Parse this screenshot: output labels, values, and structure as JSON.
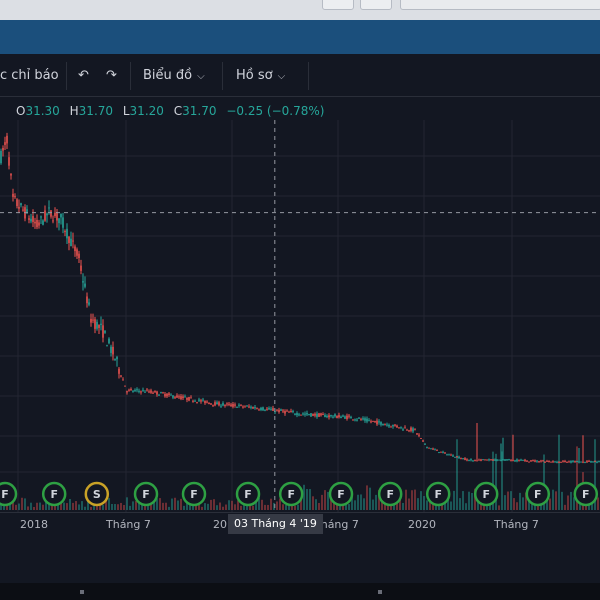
{
  "toolbar": {
    "indicators_label": "c chỉ báo",
    "undo_icon": "undo-icon",
    "redo_icon": "redo-icon",
    "chart_menu_label": "Biểu đồ",
    "profile_menu_label": "Hồ sơ"
  },
  "legend": {
    "open_label": "O",
    "open": "31.30",
    "high_label": "H",
    "high": "31.70",
    "low_label": "L",
    "low": "31.20",
    "close_label": "C",
    "close": "31.70",
    "change": "−0.25 (−0.78%)"
  },
  "crosshair": {
    "date_label": "03 Tháng 4 '19"
  },
  "colors": {
    "up": "#26a69a",
    "down": "#ef5350",
    "background": "#131722",
    "grid": "#232632",
    "event_green": "#2ea043",
    "event_yellow": "#c9a227"
  },
  "chart_data": {
    "type": "candlestick",
    "x_axis_labels": [
      "2018",
      "Tháng 7",
      "20",
      "Tháng 7",
      "2020",
      "Tháng 7"
    ],
    "price_trend": [
      {
        "t": 0,
        "p": 95
      },
      {
        "t": 0.01,
        "p": 100
      },
      {
        "t": 0.02,
        "p": 82
      },
      {
        "t": 0.04,
        "p": 78
      },
      {
        "t": 0.06,
        "p": 74
      },
      {
        "t": 0.08,
        "p": 78
      },
      {
        "t": 0.1,
        "p": 76
      },
      {
        "t": 0.13,
        "p": 64
      },
      {
        "t": 0.15,
        "p": 46
      },
      {
        "t": 0.17,
        "p": 42
      },
      {
        "t": 0.19,
        "p": 34
      },
      {
        "t": 0.21,
        "p": 24
      },
      {
        "t": 0.24,
        "p": 24
      },
      {
        "t": 0.3,
        "p": 22
      },
      {
        "t": 0.36,
        "p": 20
      },
      {
        "t": 0.42,
        "p": 19
      },
      {
        "t": 0.5,
        "p": 17
      },
      {
        "t": 0.58,
        "p": 16
      },
      {
        "t": 0.64,
        "p": 14
      },
      {
        "t": 0.69,
        "p": 12
      },
      {
        "t": 0.71,
        "p": 7
      },
      {
        "t": 0.74,
        "p": 5
      },
      {
        "t": 0.78,
        "p": 3
      },
      {
        "t": 0.85,
        "p": 3
      },
      {
        "t": 0.92,
        "p": 2.5
      },
      {
        "t": 1.0,
        "p": 2.5
      }
    ],
    "events": [
      {
        "t": 0.005,
        "label": "F",
        "kind": "green"
      },
      {
        "t": 0.087,
        "label": "F",
        "kind": "green"
      },
      {
        "t": 0.158,
        "label": "S",
        "kind": "yellow"
      },
      {
        "t": 0.24,
        "label": "F",
        "kind": "green"
      },
      {
        "t": 0.32,
        "label": "F",
        "kind": "green"
      },
      {
        "t": 0.41,
        "label": "F",
        "kind": "green"
      },
      {
        "t": 0.482,
        "label": "F",
        "kind": "green"
      },
      {
        "t": 0.565,
        "label": "F",
        "kind": "green"
      },
      {
        "t": 0.647,
        "label": "F",
        "kind": "green"
      },
      {
        "t": 0.727,
        "label": "F",
        "kind": "green"
      },
      {
        "t": 0.807,
        "label": "F",
        "kind": "green"
      },
      {
        "t": 0.893,
        "label": "F",
        "kind": "green"
      },
      {
        "t": 0.973,
        "label": "F",
        "kind": "green"
      }
    ],
    "crosshair_t": 0.458,
    "crosshair_price": 78
  }
}
